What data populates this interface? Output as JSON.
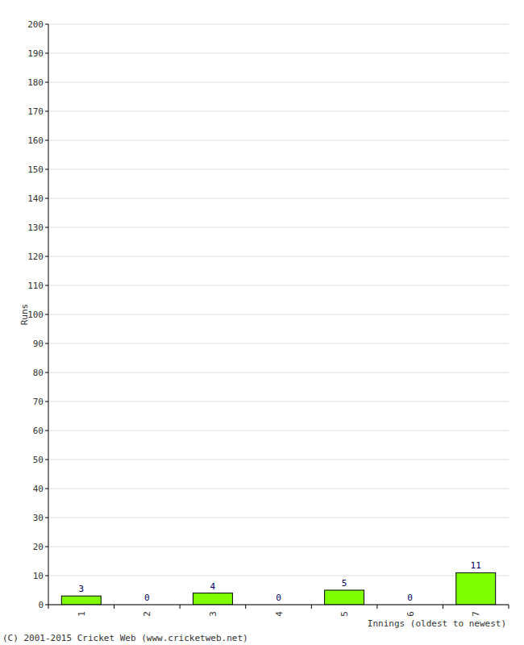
{
  "chart_data": {
    "type": "bar",
    "y_label": "Runs",
    "x_label": "Innings (oldest to newest)",
    "annotations": [
      "(C) 2001-2015 Cricket Web (www.cricketweb.net)"
    ],
    "categories": [
      "1",
      "2",
      "3",
      "4",
      "5",
      "6",
      "7"
    ],
    "values": [
      3,
      0,
      4,
      0,
      5,
      0,
      11
    ],
    "color": "#80ff00",
    "ylim": [
      0,
      200
    ],
    "yticks": [
      0,
      10,
      20,
      30,
      40,
      50,
      60,
      70,
      80,
      90,
      100,
      110,
      120,
      130,
      140,
      150,
      160,
      170,
      180,
      190,
      200
    ],
    "grid": true,
    "data_labels": true
  }
}
